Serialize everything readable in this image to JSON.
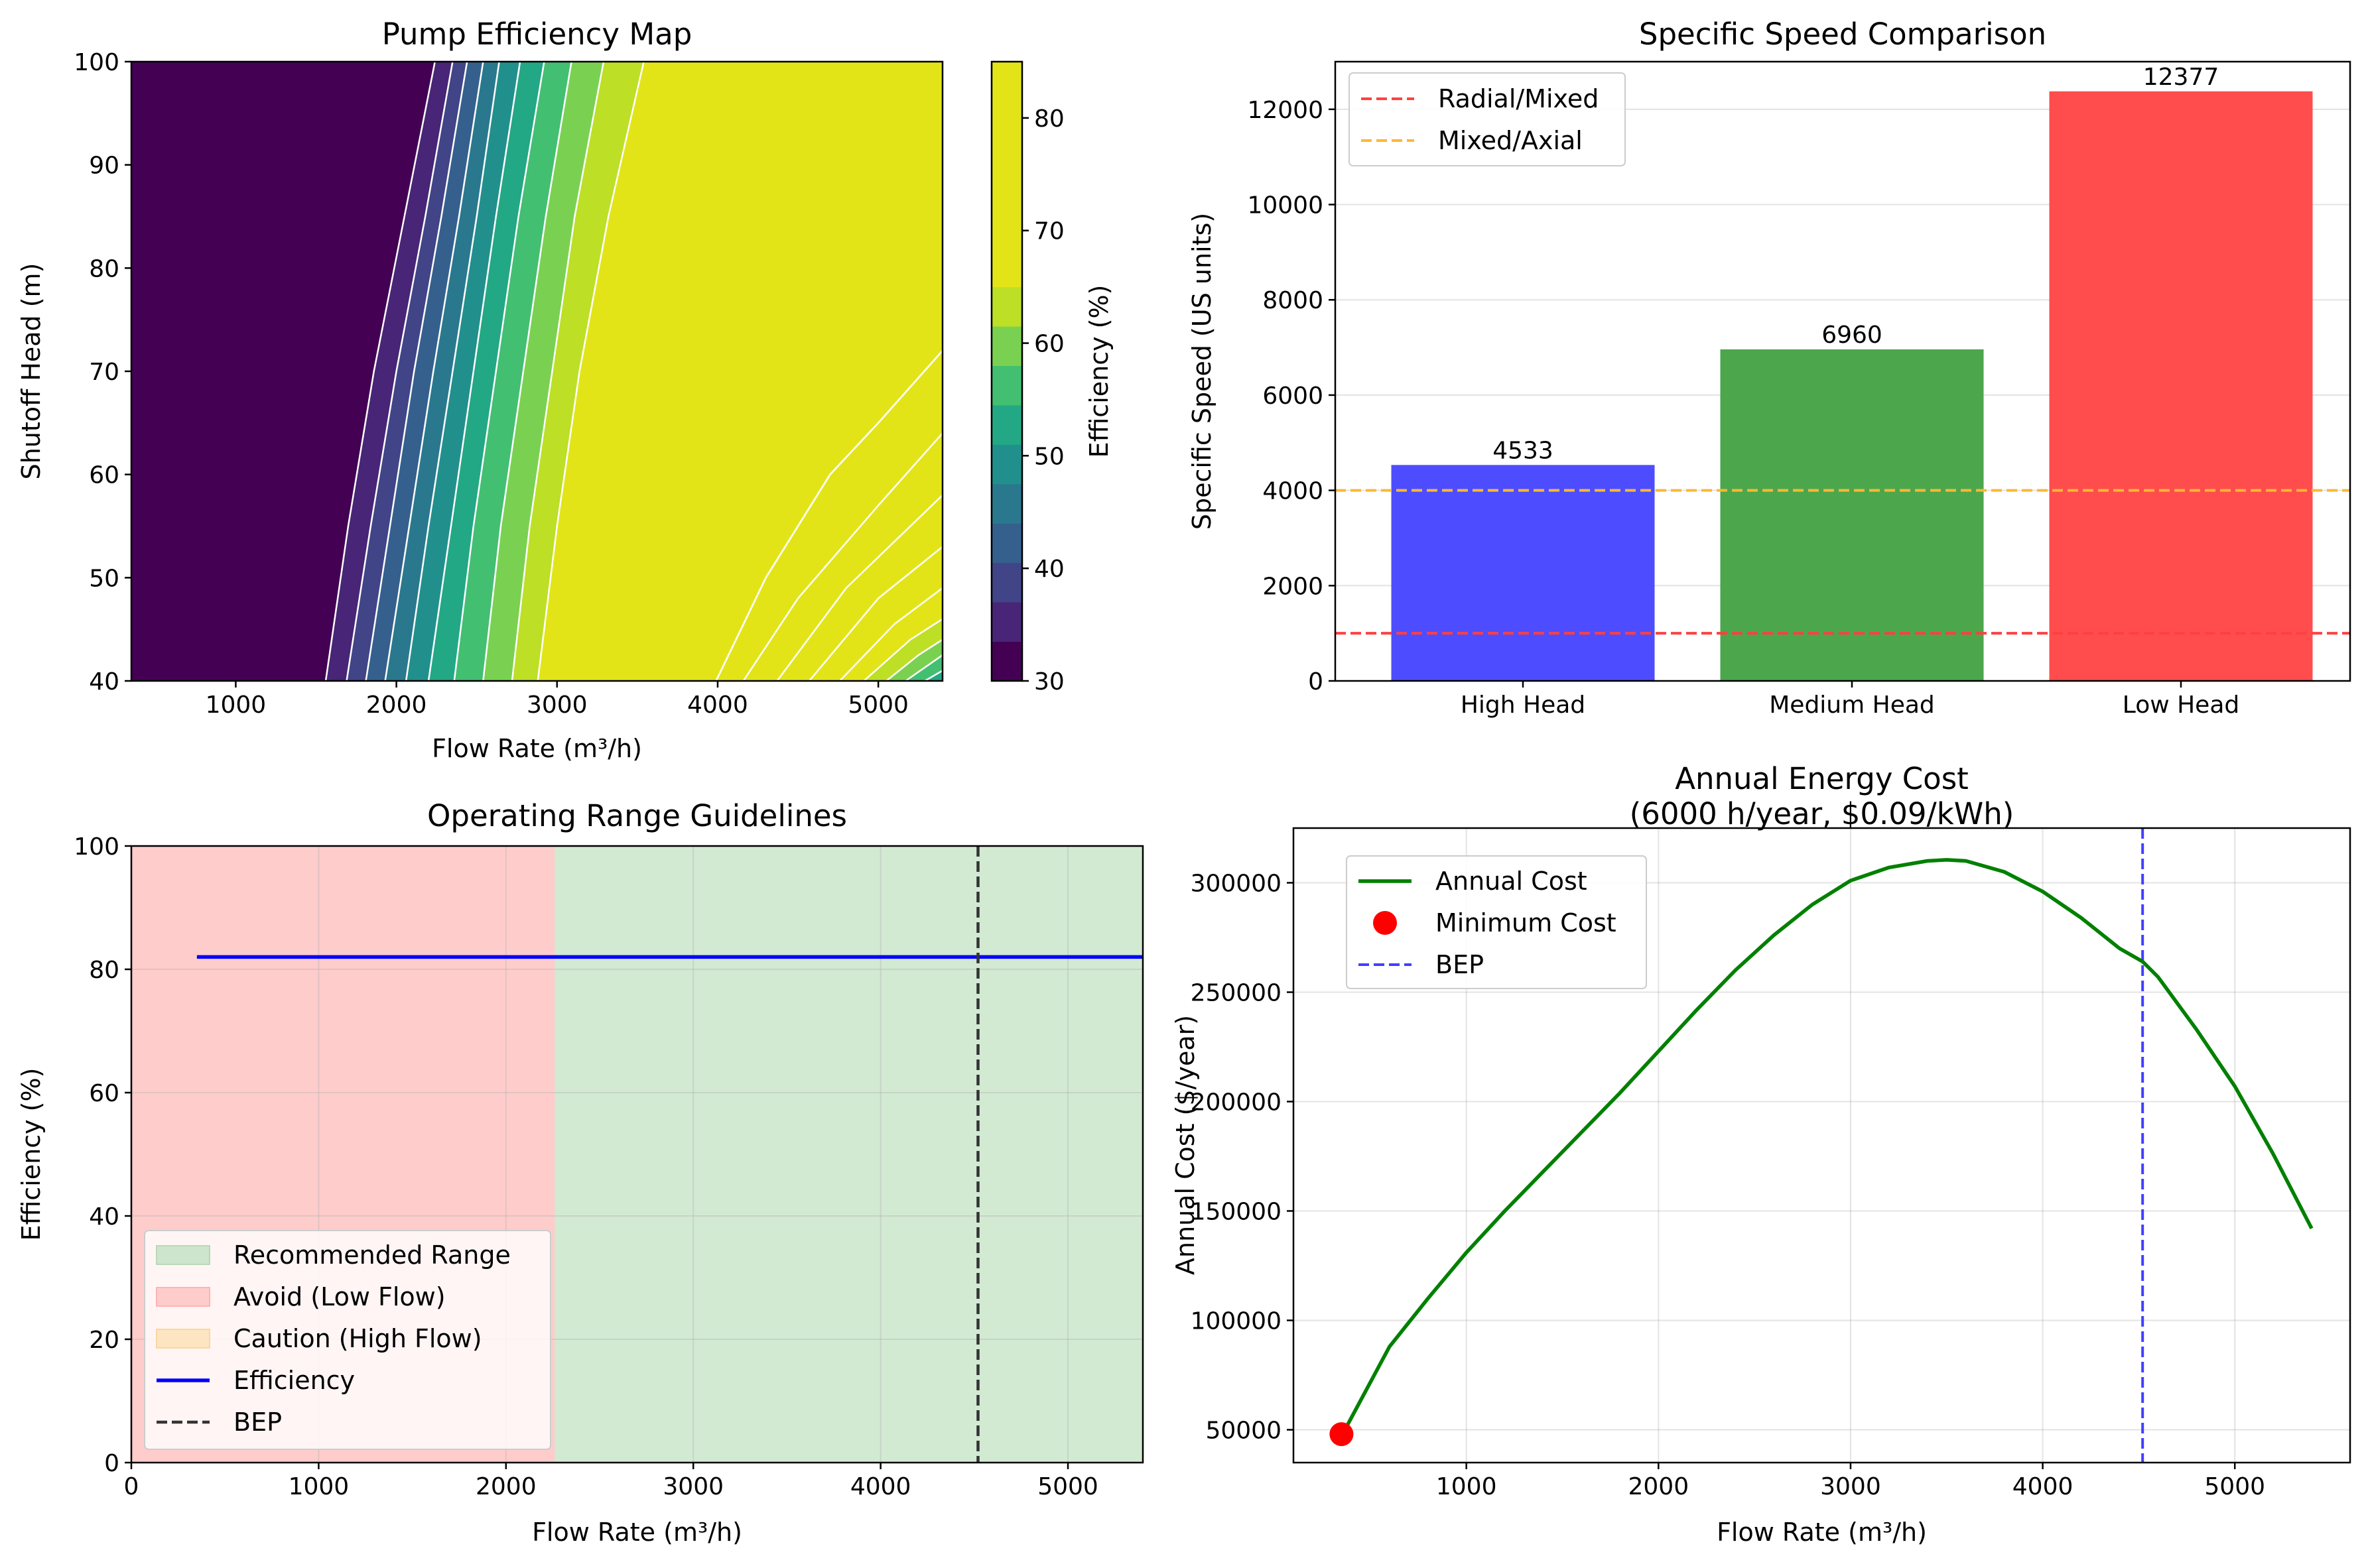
{
  "chart_data": [
    {
      "type": "heatmap",
      "title": "Pump Efficiency Map",
      "xlabel": "Flow Rate (m³/h)",
      "ylabel": "Shutoff Head (m)",
      "xlim": [
        350,
        5400
      ],
      "ylim": [
        40,
        100
      ],
      "xticks": [
        1000,
        2000,
        3000,
        4000,
        5000
      ],
      "yticks": [
        40,
        50,
        60,
        70,
        80,
        90,
        100
      ],
      "colorbar": {
        "label": "Efficiency (%)",
        "range": [
          30,
          85
        ],
        "ticks": [
          30,
          40,
          50,
          60,
          70,
          80
        ],
        "levels": [
          30,
          33.5,
          37,
          40.5,
          44,
          47.5,
          51,
          54.5,
          58,
          61.5,
          65,
          68.5,
          72,
          75.5,
          79,
          82.5,
          85
        ],
        "colors": [
          "#440154",
          "#482576",
          "#414487",
          "#35608d",
          "#2a788e",
          "#21908d",
          "#22a884",
          "#43bf71",
          "#7ad151",
          "#bddf26",
          "#e3e418",
          "#e3e418",
          "#e3e418",
          "#e3e418",
          "#e3e418",
          "#e3e418"
        ]
      },
      "boundaries": [
        {
          "level": 33.5,
          "points": [
            [
              1560,
              40
            ],
            [
              1700,
              55
            ],
            [
              1860,
              70
            ],
            [
              2050,
              85
            ],
            [
              2240,
              100
            ]
          ]
        },
        {
          "level": 37,
          "points": [
            [
              1690,
              40
            ],
            [
              1840,
              55
            ],
            [
              2000,
              70
            ],
            [
              2180,
              85
            ],
            [
              2350,
              100
            ]
          ]
        },
        {
          "level": 40.5,
          "points": [
            [
              1810,
              40
            ],
            [
              1960,
              55
            ],
            [
              2110,
              70
            ],
            [
              2280,
              85
            ],
            [
              2440,
              100
            ]
          ]
        },
        {
          "level": 44,
          "points": [
            [
              1930,
              40
            ],
            [
              2080,
              55
            ],
            [
              2230,
              70
            ],
            [
              2390,
              85
            ],
            [
              2540,
              100
            ]
          ]
        },
        {
          "level": 47.5,
          "points": [
            [
              2060,
              40
            ],
            [
              2200,
              55
            ],
            [
              2350,
              70
            ],
            [
              2500,
              85
            ],
            [
              2640,
              100
            ]
          ]
        },
        {
          "level": 51,
          "points": [
            [
              2200,
              40
            ],
            [
              2340,
              55
            ],
            [
              2480,
              70
            ],
            [
              2620,
              85
            ],
            [
              2770,
              100
            ]
          ]
        },
        {
          "level": 54.5,
          "points": [
            [
              2360,
              40
            ],
            [
              2480,
              55
            ],
            [
              2620,
              70
            ],
            [
              2760,
              85
            ],
            [
              2920,
              100
            ]
          ]
        },
        {
          "level": 58,
          "points": [
            [
              2540,
              40
            ],
            [
              2650,
              55
            ],
            [
              2790,
              70
            ],
            [
              2930,
              85
            ],
            [
              3090,
              100
            ]
          ]
        },
        {
          "level": 61.5,
          "points": [
            [
              2720,
              40
            ],
            [
              2830,
              55
            ],
            [
              2970,
              70
            ],
            [
              3110,
              85
            ],
            [
              3290,
              100
            ]
          ]
        },
        {
          "level": 65,
          "points": [
            [
              2880,
              40
            ],
            [
              3000,
              55
            ],
            [
              3140,
              70
            ],
            [
              3320,
              85
            ],
            [
              3540,
              100
            ]
          ]
        },
        {
          "level": 79,
          "points": [
            [
              3990,
              40
            ],
            [
              4300,
              50
            ],
            [
              4700,
              60
            ],
            [
              5000,
              65
            ],
            [
              5400,
              72
            ]
          ]
        }
      ],
      "high_flow_bands": [
        {
          "from": 79,
          "to": 82.5,
          "points": [
            [
              3990,
              40
            ],
            [
              4300,
              50
            ],
            [
              4700,
              60
            ],
            [
              5000,
              65
            ],
            [
              5400,
              72
            ]
          ]
        },
        {
          "from": 75.5,
          "to": 79,
          "points": [
            [
              4160,
              40
            ],
            [
              4500,
              48
            ],
            [
              5000,
              57
            ],
            [
              5400,
              64
            ]
          ]
        },
        {
          "from": 72,
          "to": 75.5,
          "points": [
            [
              4370,
              40
            ],
            [
              4800,
              49
            ],
            [
              5400,
              58
            ]
          ]
        },
        {
          "from": 68.5,
          "to": 72,
          "points": [
            [
              4570,
              40
            ],
            [
              5000,
              48
            ],
            [
              5400,
              53
            ]
          ]
        },
        {
          "from": 65,
          "to": 68.5,
          "points": [
            [
              4760,
              40
            ],
            [
              5100,
              45.5
            ],
            [
              5400,
              49
            ]
          ]
        },
        {
          "from": 61.5,
          "to": 65,
          "points": [
            [
              4910,
              40
            ],
            [
              5200,
              44
            ],
            [
              5400,
              46
            ]
          ]
        },
        {
          "from": 58,
          "to": 61.5,
          "points": [
            [
              5050,
              40
            ],
            [
              5250,
              42.5
            ],
            [
              5400,
              44
            ]
          ]
        },
        {
          "from": 54.5,
          "to": 58,
          "points": [
            [
              5170,
              40
            ],
            [
              5400,
              42.5
            ]
          ]
        },
        {
          "from": 51,
          "to": 54.5,
          "points": [
            [
              5290,
              40
            ],
            [
              5400,
              41
            ]
          ]
        }
      ]
    },
    {
      "type": "bar",
      "title": "Specific Speed Comparison",
      "xlabel": "",
      "ylabel": "Specific Speed (US units)",
      "categories": [
        "High Head",
        "Medium Head",
        "Low Head"
      ],
      "values": [
        4533,
        6960,
        12377
      ],
      "data_labels": [
        "4533",
        "6960",
        "12377"
      ],
      "colors": [
        "#4d4dff",
        "#4ca64c",
        "#ff4d4d"
      ],
      "ylim": [
        0,
        13000
      ],
      "yticks": [
        0,
        2000,
        4000,
        6000,
        8000,
        10000,
        12000
      ],
      "reference_lines": [
        {
          "name": "Radial/Mixed",
          "y": 1000,
          "color": "#ff4040",
          "style": "dashed"
        },
        {
          "name": "Mixed/Axial",
          "y": 4000,
          "color": "#ffb733",
          "style": "dashed"
        }
      ],
      "legend_position": "top-left",
      "grid": "y"
    },
    {
      "type": "area",
      "title": "Operating Range Guidelines",
      "xlabel": "Flow Rate (m³/h)",
      "ylabel": "Efficiency (%)",
      "xlim": [
        0,
        5400
      ],
      "ylim": [
        0,
        100
      ],
      "xticks": [
        0,
        1000,
        2000,
        3000,
        4000,
        5000
      ],
      "yticks": [
        0,
        20,
        40,
        60,
        80,
        100
      ],
      "regions": [
        {
          "name": "Avoid (Low Flow)",
          "x": [
            0,
            2260
          ],
          "color": "#ff9999"
        },
        {
          "name": "Recommended Range",
          "x": [
            2260,
            5400
          ],
          "color": "#a6d4a6"
        }
      ],
      "series": [
        {
          "name": "Efficiency",
          "x": [
            350,
            5400
          ],
          "y": [
            82,
            82
          ],
          "color": "#0000ff"
        }
      ],
      "vlines": [
        {
          "name": "BEP",
          "x": 4520,
          "color": "#333333",
          "style": "dashed"
        }
      ],
      "legend": [
        {
          "name": "Recommended Range",
          "kind": "patch",
          "color": "#cce5cc",
          "edge": "#b9d9b9"
        },
        {
          "name": "Avoid (Low Flow)",
          "kind": "patch",
          "color": "#ffcccc",
          "edge": "#ffb3b3"
        },
        {
          "name": "Caution (High Flow)",
          "kind": "patch",
          "color": "#fde5c2",
          "edge": "#fbd79e"
        },
        {
          "name": "Efficiency",
          "kind": "line",
          "color": "#0000ff"
        },
        {
          "name": "BEP",
          "kind": "dash",
          "color": "#333333"
        }
      ],
      "legend_position": "bottom-left",
      "grid": true
    },
    {
      "type": "line",
      "title": "Annual Energy Cost",
      "subtitle": "(6000 h/year, $0.09/kWh)",
      "xlabel": "Flow Rate (m³/h)",
      "ylabel": "Annual Cost ($/year)",
      "xlim": [
        100,
        5600
      ],
      "ylim": [
        35000,
        325000
      ],
      "xticks": [
        1000,
        2000,
        3000,
        4000,
        5000
      ],
      "yticks": [
        50000,
        100000,
        150000,
        200000,
        250000,
        300000
      ],
      "series": [
        {
          "name": "Annual Cost",
          "color": "#008000",
          "x": [
            380,
            600,
            800,
            1000,
            1200,
            1400,
            1600,
            1800,
            2000,
            2200,
            2400,
            2600,
            2800,
            3000,
            3200,
            3400,
            3500,
            3600,
            3800,
            4000,
            4200,
            4400,
            4520,
            4600,
            4800,
            5000,
            5200,
            5400
          ],
          "y": [
            52000,
            88000,
            110000,
            131000,
            150000,
            168000,
            186000,
            204000,
            223000,
            242000,
            260000,
            276000,
            290000,
            301000,
            307000,
            310000,
            310500,
            310000,
            305000,
            296000,
            284000,
            270000,
            264000,
            257000,
            233000,
            207000,
            176000,
            142000
          ]
        }
      ],
      "points": [
        {
          "name": "Minimum Cost",
          "x": 350,
          "y": 48000,
          "color": "#ff0000"
        }
      ],
      "vlines": [
        {
          "name": "BEP",
          "x": 4520,
          "color": "#4040ff",
          "style": "dashed"
        }
      ],
      "legend_position": "top-left",
      "grid": true
    }
  ]
}
